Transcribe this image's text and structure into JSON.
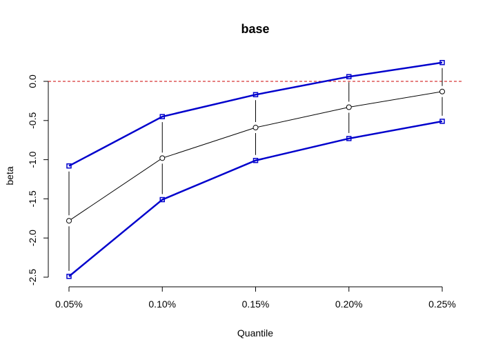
{
  "chart_data": {
    "type": "line",
    "title": "base",
    "xlabel": "Quantile",
    "ylabel": "beta",
    "categories": [
      "0.05%",
      "0.10%",
      "0.15%",
      "0.20%",
      "0.25%"
    ],
    "yticks": [
      0.0,
      -0.5,
      -1.0,
      -1.5,
      -2.0,
      -2.5
    ],
    "ytick_labels": [
      "0.0",
      "-0.5",
      "-1.0",
      "-1.5",
      "-2.0",
      "-2.5"
    ],
    "ylim": [
      -2.5,
      0.25
    ],
    "reference_line": {
      "y": 0.0,
      "color": "#cc0000",
      "style": "dashed"
    },
    "series": [
      {
        "role": "estimate",
        "values": [
          -1.78,
          -0.98,
          -0.59,
          -0.33,
          -0.13
        ],
        "color": "#000000"
      },
      {
        "role": "upper",
        "values": [
          -1.08,
          -0.45,
          -0.17,
          0.06,
          0.24
        ],
        "color": "#0000cc"
      },
      {
        "role": "lower",
        "values": [
          -2.49,
          -1.51,
          -1.01,
          -0.73,
          -0.51
        ],
        "color": "#0000cc"
      }
    ],
    "grid": false,
    "legend": "none"
  }
}
